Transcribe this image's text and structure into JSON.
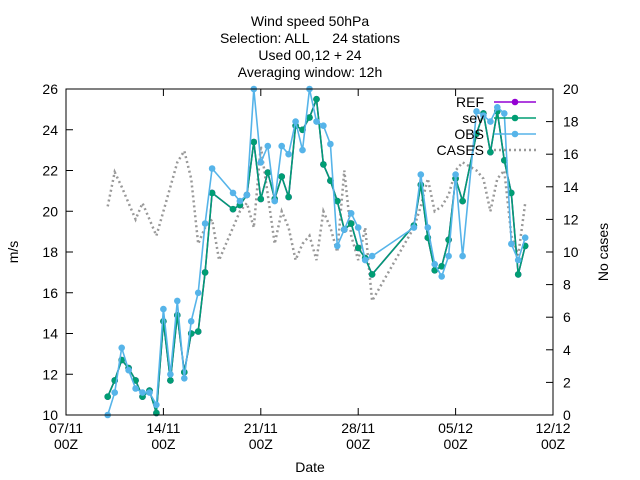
{
  "chart_data": {
    "type": "line",
    "title_lines": [
      "Wind speed 50hPa",
      "Selection: ALL      24 stations",
      "Used 00,12 + 24",
      "Averaging window: 12h"
    ],
    "xlabel": "Date",
    "ylabel": "m/s",
    "y2label": "No cases",
    "xlim": [
      "2023-11-07 00:00",
      "2023-12-12 00:00"
    ],
    "ylim": [
      10,
      26
    ],
    "y2lim": [
      0,
      20
    ],
    "x_ticks": [
      {
        "date": "2023-11-07 00:00",
        "line1": "07/11",
        "line2": "00Z"
      },
      {
        "date": "2023-11-14 00:00",
        "line1": "14/11",
        "line2": "00Z"
      },
      {
        "date": "2023-11-21 00:00",
        "line1": "21/11",
        "line2": "00Z"
      },
      {
        "date": "2023-11-28 00:00",
        "line1": "28/11",
        "line2": "00Z"
      },
      {
        "date": "2023-12-05 00:00",
        "line1": "05/12",
        "line2": "00Z"
      },
      {
        "date": "2023-12-12 00:00",
        "line1": "12/12",
        "line2": "00Z"
      }
    ],
    "y_ticks": [
      10,
      12,
      14,
      16,
      18,
      20,
      22,
      24,
      26
    ],
    "y2_ticks": [
      0,
      2,
      4,
      6,
      8,
      10,
      12,
      14,
      16,
      18,
      20
    ],
    "legend_position": "top-right",
    "series": [
      {
        "name": "REF",
        "axis": "y",
        "color": "#9400d3",
        "style": "line-points",
        "marker": "circle",
        "data": [
          [
            "2023-11-10 00:00",
            10.9
          ],
          [
            "2023-11-10 12:00",
            11.7
          ],
          [
            "2023-11-11 00:00",
            12.7
          ],
          [
            "2023-11-11 12:00",
            12.3
          ],
          [
            "2023-11-12 00:00",
            11.7
          ],
          [
            "2023-11-12 12:00",
            10.9
          ],
          [
            "2023-11-13 00:00",
            11.2
          ],
          [
            "2023-11-13 12:00",
            10.1
          ],
          [
            "2023-11-14 00:00",
            14.6
          ],
          [
            "2023-11-14 12:00",
            11.7
          ],
          [
            "2023-11-15 00:00",
            14.9
          ],
          [
            "2023-11-15 12:00",
            12.1
          ],
          [
            "2023-11-16 00:00",
            14.0
          ],
          [
            "2023-11-16 12:00",
            14.1
          ],
          [
            "2023-11-17 00:00",
            17.0
          ],
          [
            "2023-11-17 12:00",
            20.9
          ],
          [
            "2023-11-19 00:00",
            20.1
          ],
          [
            "2023-11-19 12:00",
            20.3
          ],
          [
            "2023-11-20 00:00",
            20.8
          ],
          [
            "2023-11-20 12:00",
            23.4
          ],
          [
            "2023-11-21 00:00",
            20.6
          ],
          [
            "2023-11-21 12:00",
            21.9
          ],
          [
            "2023-11-22 00:00",
            20.6
          ],
          [
            "2023-11-22 12:00",
            21.7
          ],
          [
            "2023-11-23 00:00",
            20.7
          ],
          [
            "2023-11-23 12:00",
            24.2
          ],
          [
            "2023-11-24 00:00",
            24.0
          ],
          [
            "2023-11-24 12:00",
            24.6
          ],
          [
            "2023-11-25 00:00",
            25.5
          ],
          [
            "2023-11-25 12:00",
            22.3
          ],
          [
            "2023-11-26 00:00",
            21.5
          ],
          [
            "2023-11-26 12:00",
            20.5
          ],
          [
            "2023-11-27 00:00",
            19.1
          ],
          [
            "2023-11-27 12:00",
            19.4
          ],
          [
            "2023-11-28 00:00",
            18.2
          ],
          [
            "2023-11-28 12:00",
            17.7
          ],
          [
            "2023-11-29 00:00",
            16.9
          ],
          [
            "2023-12-02 00:00",
            19.3
          ],
          [
            "2023-12-02 12:00",
            21.3
          ],
          [
            "2023-12-03 00:00",
            18.7
          ],
          [
            "2023-12-03 12:00",
            17.1
          ],
          [
            "2023-12-04 00:00",
            17.3
          ],
          [
            "2023-12-04 12:00",
            18.6
          ],
          [
            "2023-12-05 00:00",
            21.6
          ],
          [
            "2023-12-05 12:00",
            20.5
          ],
          [
            "2023-12-06 12:00",
            23.8
          ],
          [
            "2023-12-07 00:00",
            24.8
          ],
          [
            "2023-12-07 12:00",
            22.9
          ],
          [
            "2023-12-08 00:00",
            24.9
          ],
          [
            "2023-12-08 12:00",
            22.5
          ],
          [
            "2023-12-09 00:00",
            20.9
          ],
          [
            "2023-12-09 12:00",
            16.9
          ],
          [
            "2023-12-10 00:00",
            18.3
          ]
        ]
      },
      {
        "name": "sev",
        "legend_text": "sev",
        "axis": "y",
        "color": "#009e73",
        "style": "line-points",
        "marker": "circle",
        "data": [
          [
            "2023-11-10 00:00",
            10.9
          ],
          [
            "2023-11-10 12:00",
            11.7
          ],
          [
            "2023-11-11 00:00",
            12.7
          ],
          [
            "2023-11-11 12:00",
            12.3
          ],
          [
            "2023-11-12 00:00",
            11.7
          ],
          [
            "2023-11-12 12:00",
            10.9
          ],
          [
            "2023-11-13 00:00",
            11.2
          ],
          [
            "2023-11-13 12:00",
            10.1
          ],
          [
            "2023-11-14 00:00",
            14.6
          ],
          [
            "2023-11-14 12:00",
            11.7
          ],
          [
            "2023-11-15 00:00",
            14.9
          ],
          [
            "2023-11-15 12:00",
            12.1
          ],
          [
            "2023-11-16 00:00",
            14.0
          ],
          [
            "2023-11-16 12:00",
            14.1
          ],
          [
            "2023-11-17 00:00",
            17.0
          ],
          [
            "2023-11-17 12:00",
            20.9
          ],
          [
            "2023-11-19 00:00",
            20.1
          ],
          [
            "2023-11-19 12:00",
            20.3
          ],
          [
            "2023-11-20 00:00",
            20.8
          ],
          [
            "2023-11-20 12:00",
            23.4
          ],
          [
            "2023-11-21 00:00",
            20.6
          ],
          [
            "2023-11-21 12:00",
            21.9
          ],
          [
            "2023-11-22 00:00",
            20.6
          ],
          [
            "2023-11-22 12:00",
            21.7
          ],
          [
            "2023-11-23 00:00",
            20.7
          ],
          [
            "2023-11-23 12:00",
            24.2
          ],
          [
            "2023-11-24 00:00",
            24.0
          ],
          [
            "2023-11-24 12:00",
            24.6
          ],
          [
            "2023-11-25 00:00",
            25.5
          ],
          [
            "2023-11-25 12:00",
            22.3
          ],
          [
            "2023-11-26 00:00",
            21.5
          ],
          [
            "2023-11-26 12:00",
            20.5
          ],
          [
            "2023-11-27 00:00",
            19.1
          ],
          [
            "2023-11-27 12:00",
            19.4
          ],
          [
            "2023-11-28 00:00",
            18.2
          ],
          [
            "2023-11-28 12:00",
            17.7
          ],
          [
            "2023-11-29 00:00",
            16.9
          ],
          [
            "2023-12-02 00:00",
            19.3
          ],
          [
            "2023-12-02 12:00",
            21.3
          ],
          [
            "2023-12-03 00:00",
            18.7
          ],
          [
            "2023-12-03 12:00",
            17.1
          ],
          [
            "2023-12-04 00:00",
            17.3
          ],
          [
            "2023-12-04 12:00",
            18.6
          ],
          [
            "2023-12-05 00:00",
            21.6
          ],
          [
            "2023-12-05 12:00",
            20.5
          ],
          [
            "2023-12-06 12:00",
            23.8
          ],
          [
            "2023-12-07 00:00",
            24.8
          ],
          [
            "2023-12-07 12:00",
            22.9
          ],
          [
            "2023-12-08 00:00",
            24.9
          ],
          [
            "2023-12-08 12:00",
            22.5
          ],
          [
            "2023-12-09 00:00",
            20.9
          ],
          [
            "2023-12-09 12:00",
            16.9
          ],
          [
            "2023-12-10 00:00",
            18.3
          ]
        ]
      },
      {
        "name": "OBS",
        "axis": "y",
        "color": "#56b4e9",
        "style": "line-points",
        "marker": "circle",
        "data": [
          [
            "2023-11-10 00:00",
            10.0
          ],
          [
            "2023-11-10 12:00",
            11.1
          ],
          [
            "2023-11-11 00:00",
            13.3
          ],
          [
            "2023-11-11 12:00",
            12.2
          ],
          [
            "2023-11-12 00:00",
            11.3
          ],
          [
            "2023-11-12 12:00",
            11.1
          ],
          [
            "2023-11-13 00:00",
            11.1
          ],
          [
            "2023-11-13 12:00",
            10.5
          ],
          [
            "2023-11-14 00:00",
            15.2
          ],
          [
            "2023-11-14 12:00",
            12.0
          ],
          [
            "2023-11-15 00:00",
            15.6
          ],
          [
            "2023-11-15 12:00",
            11.8
          ],
          [
            "2023-11-16 00:00",
            14.6
          ],
          [
            "2023-11-16 12:00",
            16.0
          ],
          [
            "2023-11-17 00:00",
            19.4
          ],
          [
            "2023-11-17 12:00",
            22.1
          ],
          [
            "2023-11-19 00:00",
            20.9
          ],
          [
            "2023-11-19 12:00",
            20.5
          ],
          [
            "2023-11-20 00:00",
            20.8
          ],
          [
            "2023-11-20 12:00",
            26.0
          ],
          [
            "2023-11-21 00:00",
            22.4
          ],
          [
            "2023-11-21 12:00",
            23.2
          ],
          [
            "2023-11-22 00:00",
            20.5
          ],
          [
            "2023-11-22 12:00",
            23.2
          ],
          [
            "2023-11-23 00:00",
            22.8
          ],
          [
            "2023-11-23 12:00",
            24.4
          ],
          [
            "2023-11-24 00:00",
            23.0
          ],
          [
            "2023-11-24 12:00",
            26.0
          ],
          [
            "2023-11-25 00:00",
            24.4
          ],
          [
            "2023-11-25 12:00",
            24.2
          ],
          [
            "2023-11-26 00:00",
            23.3
          ],
          [
            "2023-11-26 12:00",
            18.3
          ],
          [
            "2023-11-27 00:00",
            19.1
          ],
          [
            "2023-11-27 12:00",
            19.9
          ],
          [
            "2023-11-28 00:00",
            19.2
          ],
          [
            "2023-11-28 12:00",
            17.6
          ],
          [
            "2023-11-29 00:00",
            17.8
          ],
          [
            "2023-12-02 00:00",
            19.2
          ],
          [
            "2023-12-02 12:00",
            21.8
          ],
          [
            "2023-12-03 00:00",
            19.2
          ],
          [
            "2023-12-03 12:00",
            17.4
          ],
          [
            "2023-12-04 00:00",
            16.8
          ],
          [
            "2023-12-04 12:00",
            17.8
          ],
          [
            "2023-12-05 00:00",
            21.8
          ],
          [
            "2023-12-05 12:00",
            17.8
          ],
          [
            "2023-12-06 12:00",
            24.9
          ],
          [
            "2023-12-07 00:00",
            24.7
          ],
          [
            "2023-12-07 12:00",
            24.4
          ],
          [
            "2023-12-08 00:00",
            25.1
          ],
          [
            "2023-12-08 12:00",
            24.8
          ],
          [
            "2023-12-09 00:00",
            18.4
          ],
          [
            "2023-12-09 12:00",
            17.6
          ],
          [
            "2023-12-10 00:00",
            18.7
          ]
        ]
      },
      {
        "name": "CASES",
        "axis": "y2",
        "color": "#999999",
        "style": "dotted-line",
        "data": [
          [
            "2023-11-10 00:00",
            12.8
          ],
          [
            "2023-11-10 12:00",
            14.9
          ],
          [
            "2023-11-11 00:00",
            14.0
          ],
          [
            "2023-11-11 12:00",
            13.0
          ],
          [
            "2023-11-12 00:00",
            12.0
          ],
          [
            "2023-11-12 12:00",
            13.0
          ],
          [
            "2023-11-13 00:00",
            12.0
          ],
          [
            "2023-11-13 12:00",
            11.0
          ],
          [
            "2023-11-14 00:00",
            12.5
          ],
          [
            "2023-11-14 12:00",
            14.0
          ],
          [
            "2023-11-15 00:00",
            15.5
          ],
          [
            "2023-11-15 12:00",
            16.2
          ],
          [
            "2023-11-16 00:00",
            14.5
          ],
          [
            "2023-11-16 12:00",
            10.5
          ],
          [
            "2023-11-17 00:00",
            11.5
          ],
          [
            "2023-11-17 12:00",
            12.0
          ],
          [
            "2023-11-18 00:00",
            9.5
          ],
          [
            "2023-11-18 12:00",
            10.5
          ],
          [
            "2023-11-19 00:00",
            11.5
          ],
          [
            "2023-11-19 12:00",
            12.5
          ],
          [
            "2023-11-20 00:00",
            13.0
          ],
          [
            "2023-11-20 12:00",
            11.5
          ],
          [
            "2023-11-21 00:00",
            16.5
          ],
          [
            "2023-11-21 12:00",
            13.5
          ],
          [
            "2023-11-22 00:00",
            10.5
          ],
          [
            "2023-11-22 12:00",
            12.5
          ],
          [
            "2023-11-23 00:00",
            11.5
          ],
          [
            "2023-11-23 12:00",
            9.5
          ],
          [
            "2023-11-24 00:00",
            10.5
          ],
          [
            "2023-11-24 12:00",
            11.0
          ],
          [
            "2023-11-25 00:00",
            9.5
          ],
          [
            "2023-11-25 12:00",
            12.5
          ],
          [
            "2023-11-26 00:00",
            11.5
          ],
          [
            "2023-11-26 12:00",
            10.0
          ],
          [
            "2023-11-27 00:00",
            15.0
          ],
          [
            "2023-11-27 12:00",
            11.0
          ],
          [
            "2023-11-28 00:00",
            9.5
          ],
          [
            "2023-11-28 12:00",
            11.5
          ],
          [
            "2023-11-29 00:00",
            7.0
          ],
          [
            "2023-11-30 00:00",
            8.5
          ],
          [
            "2023-12-02 00:00",
            11.5
          ],
          [
            "2023-12-02 12:00",
            12.8
          ],
          [
            "2023-12-03 00:00",
            14.5
          ],
          [
            "2023-12-03 12:00",
            12.5
          ],
          [
            "2023-12-04 00:00",
            12.8
          ],
          [
            "2023-12-04 12:00",
            13.5
          ],
          [
            "2023-12-05 00:00",
            15.0
          ],
          [
            "2023-12-05 12:00",
            15.5
          ],
          [
            "2023-12-06 12:00",
            15.0
          ],
          [
            "2023-12-07 00:00",
            14.5
          ],
          [
            "2023-12-07 12:00",
            12.5
          ],
          [
            "2023-12-08 00:00",
            14.5
          ],
          [
            "2023-12-08 12:00",
            15.0
          ],
          [
            "2023-12-09 00:00",
            11.0
          ],
          [
            "2023-12-09 12:00",
            9.8
          ],
          [
            "2023-12-10 00:00",
            13.0
          ]
        ]
      }
    ]
  }
}
